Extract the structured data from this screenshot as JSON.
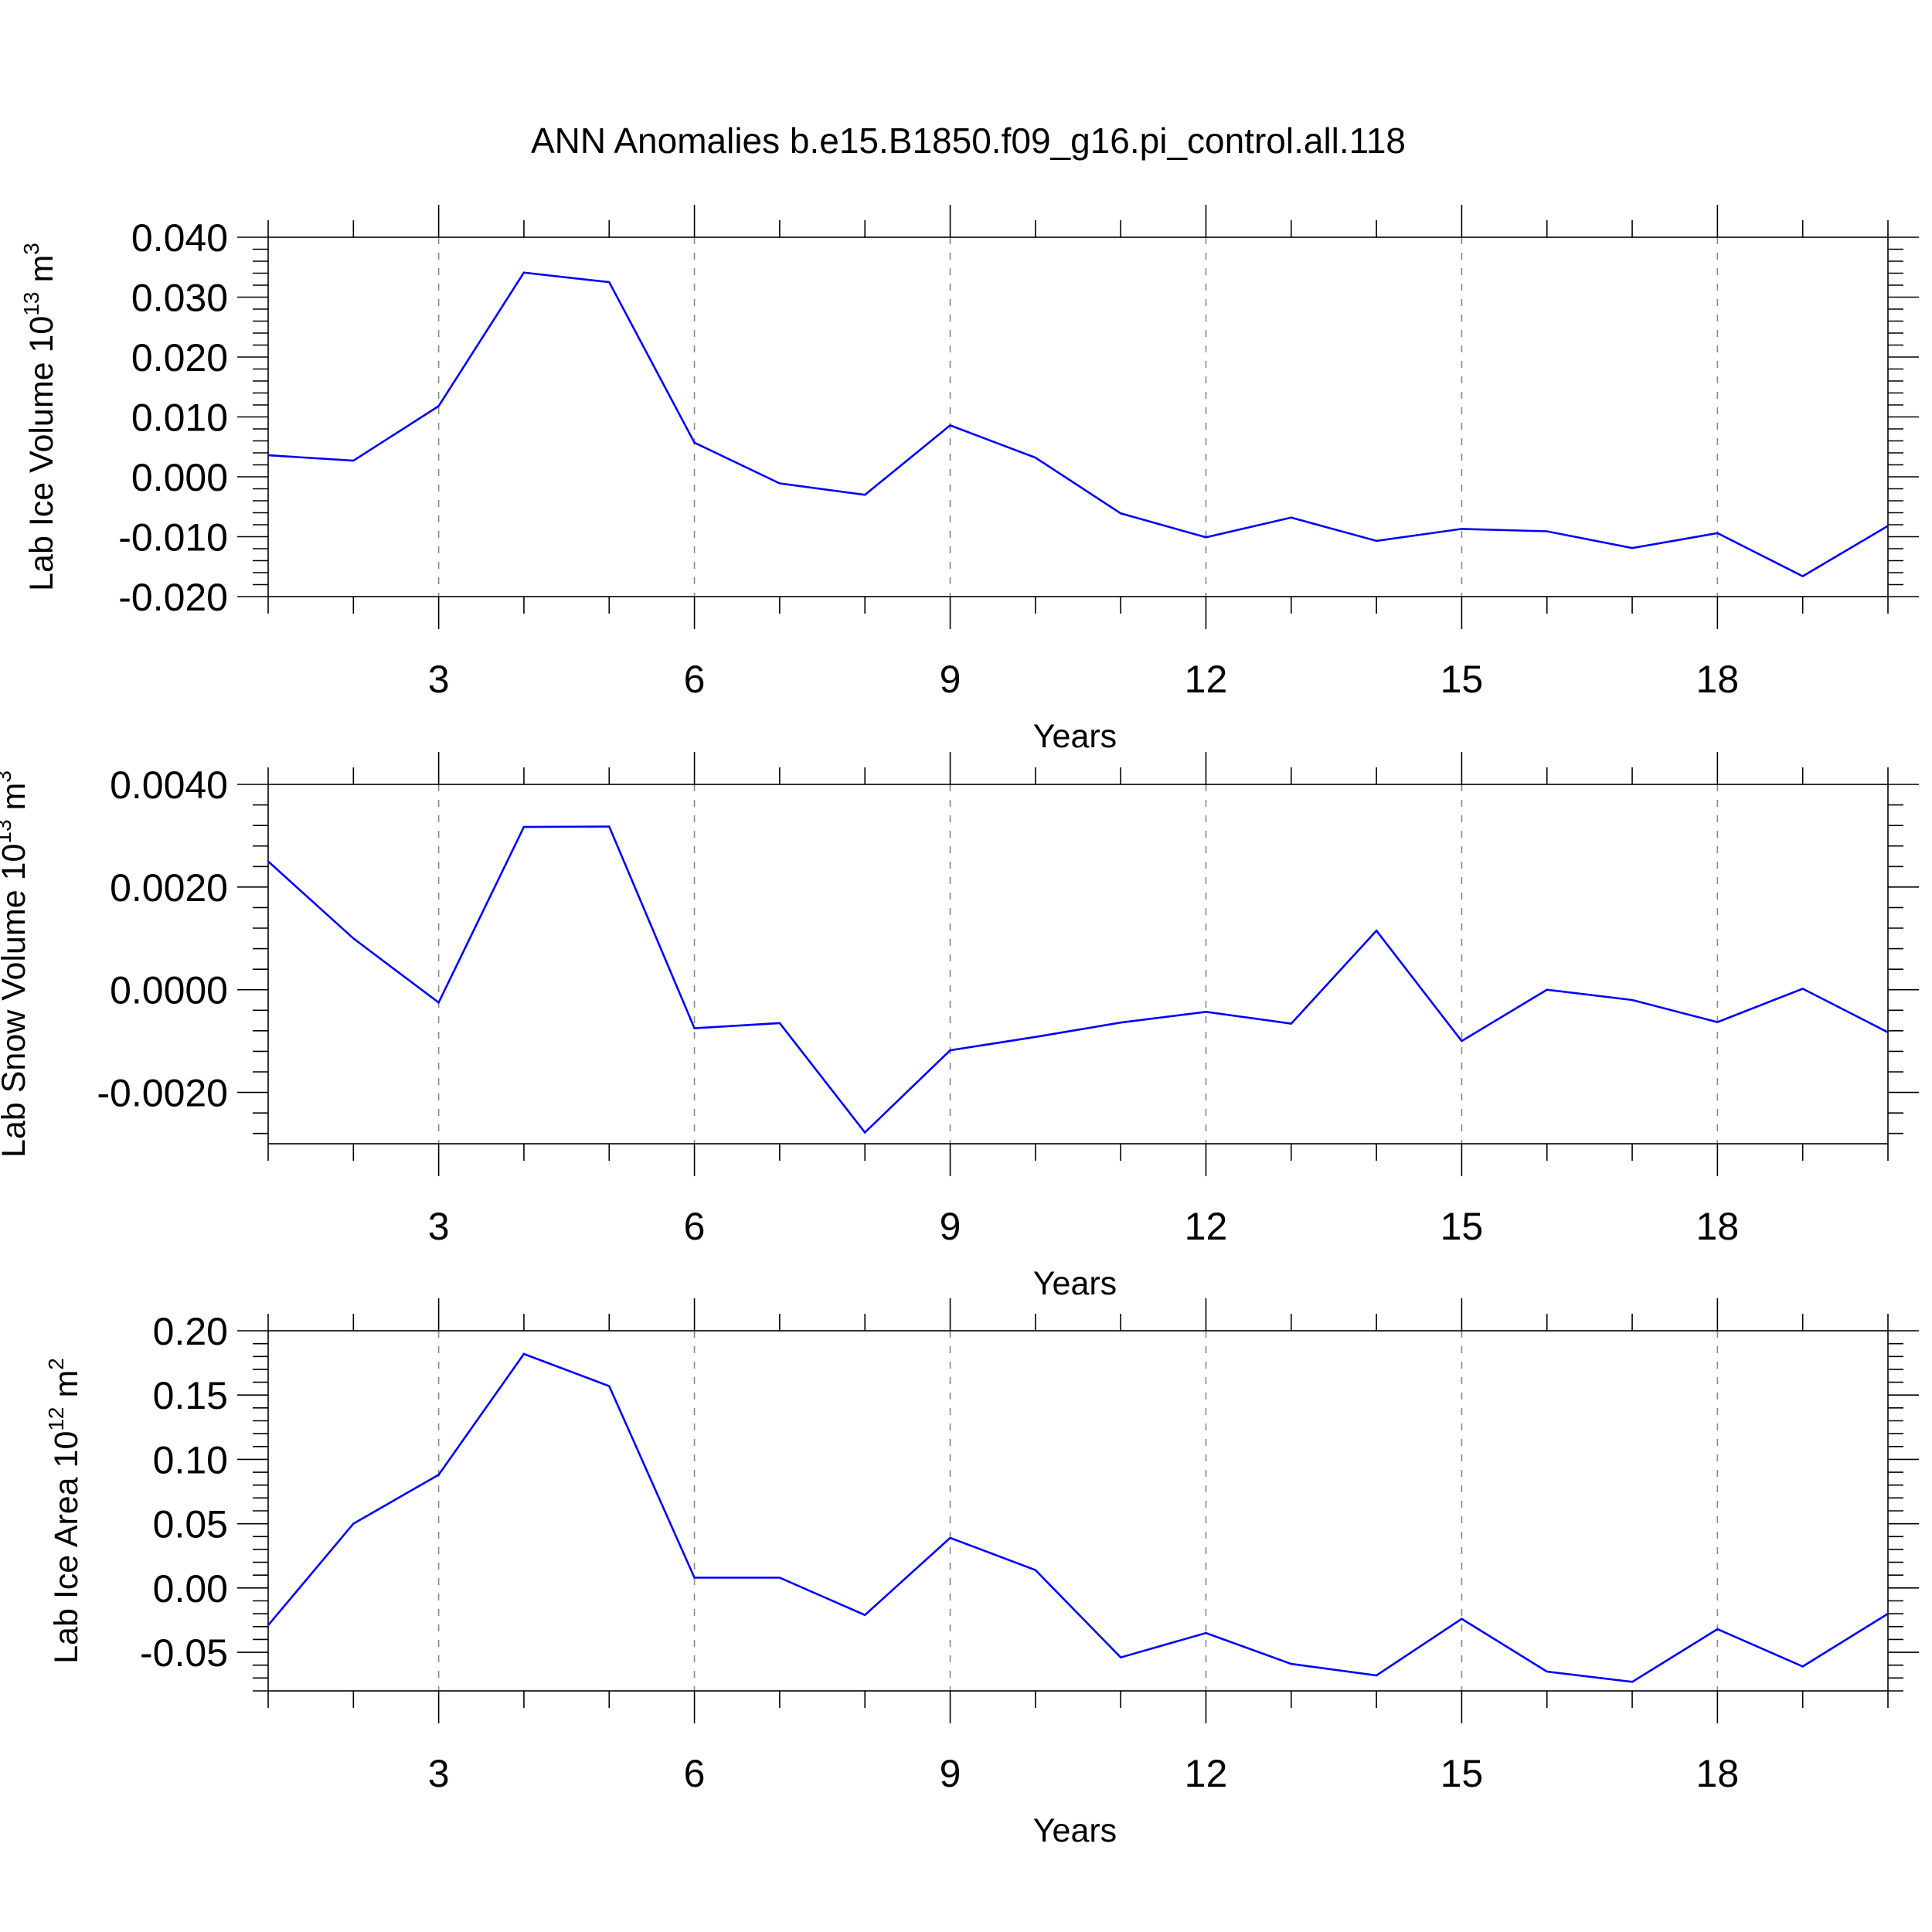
{
  "title": "ANN Anomalies b.e15.B1850.f09_g16.pi_control.all.118",
  "colors": {
    "line": "#0000ff",
    "grid": "#888888",
    "frame": "#000000"
  },
  "chart_data": [
    {
      "type": "line",
      "ylabel": {
        "text": "Lab Ice Volume 10",
        "sup": "13",
        "unit": " m",
        "unit_sup": "3"
      },
      "xlabel": "Years",
      "xlim": [
        1,
        20
      ],
      "ylim": [
        -0.02,
        0.04
      ],
      "xticks": [
        3,
        6,
        9,
        12,
        15,
        18
      ],
      "xtick_labels": [
        "3",
        "6",
        "9",
        "12",
        "15",
        "18"
      ],
      "yticks": [
        -0.02,
        -0.01,
        0.0,
        0.01,
        0.02,
        0.03,
        0.04
      ],
      "ytick_labels": [
        "-0.020",
        "-0.010",
        "0.000",
        "0.010",
        "0.020",
        "0.030",
        "0.040"
      ],
      "grid": "vertical dashed at major x ticks",
      "x": [
        1,
        2,
        3,
        4,
        5,
        6,
        7,
        8,
        9,
        10,
        11,
        12,
        13,
        14,
        15,
        16,
        17,
        18,
        19,
        20
      ],
      "values": [
        0.0036,
        0.0027,
        0.0118,
        0.0341,
        0.0325,
        0.0057,
        -0.0011,
        -0.003,
        0.0086,
        0.0032,
        -0.0061,
        -0.0101,
        -0.0068,
        -0.0107,
        -0.0087,
        -0.0091,
        -0.0119,
        -0.0094,
        -0.0166,
        -0.0082
      ]
    },
    {
      "type": "line",
      "ylabel": {
        "text": "Lab Snow Volume 10",
        "sup": "13",
        "unit": " m",
        "unit_sup": "3"
      },
      "xlabel": "Years",
      "xlim": [
        1,
        20
      ],
      "ylim": [
        -0.003,
        0.004
      ],
      "xticks": [
        3,
        6,
        9,
        12,
        15,
        18
      ],
      "xtick_labels": [
        "3",
        "6",
        "9",
        "12",
        "15",
        "18"
      ],
      "yticks": [
        -0.002,
        0.0,
        0.002,
        0.004
      ],
      "ytick_labels": [
        "-0.0020",
        "0.0000",
        "0.0020",
        "0.0040"
      ],
      "grid": "vertical dashed at major x ticks",
      "x": [
        1,
        2,
        3,
        4,
        5,
        6,
        7,
        8,
        9,
        10,
        11,
        12,
        13,
        14,
        15,
        16,
        17,
        18,
        19,
        20
      ],
      "values": [
        0.0025,
        0.001,
        -0.00025,
        0.00317,
        0.00318,
        -0.00075,
        -0.00065,
        -0.00278,
        -0.00118,
        -0.00092,
        -0.00064,
        -0.00043,
        -0.00066,
        0.00115,
        -0.001,
        0.0,
        -0.0002,
        -0.00063,
        2e-05,
        -0.00083
      ]
    },
    {
      "type": "line",
      "ylabel": {
        "text": "Lab Ice Area 10",
        "sup": "12",
        "unit": " m",
        "unit_sup": "2"
      },
      "xlabel": "Years",
      "xlim": [
        1,
        20
      ],
      "ylim": [
        -0.08,
        0.2
      ],
      "xticks": [
        3,
        6,
        9,
        12,
        15,
        18
      ],
      "xtick_labels": [
        "3",
        "6",
        "9",
        "12",
        "15",
        "18"
      ],
      "yticks": [
        -0.05,
        0.0,
        0.05,
        0.1,
        0.15,
        0.2
      ],
      "ytick_labels": [
        "-0.05",
        "0.00",
        "0.05",
        "0.10",
        "0.15",
        "0.20"
      ],
      "grid": "vertical dashed at major x ticks",
      "x": [
        1,
        2,
        3,
        4,
        5,
        6,
        7,
        8,
        9,
        10,
        11,
        12,
        13,
        14,
        15,
        16,
        17,
        18,
        19,
        20
      ],
      "values": [
        -0.029,
        0.05,
        0.088,
        0.182,
        0.157,
        0.008,
        0.008,
        -0.021,
        0.039,
        0.014,
        -0.054,
        -0.035,
        -0.059,
        -0.068,
        -0.024,
        -0.065,
        -0.073,
        -0.032,
        -0.061,
        -0.02
      ]
    }
  ]
}
